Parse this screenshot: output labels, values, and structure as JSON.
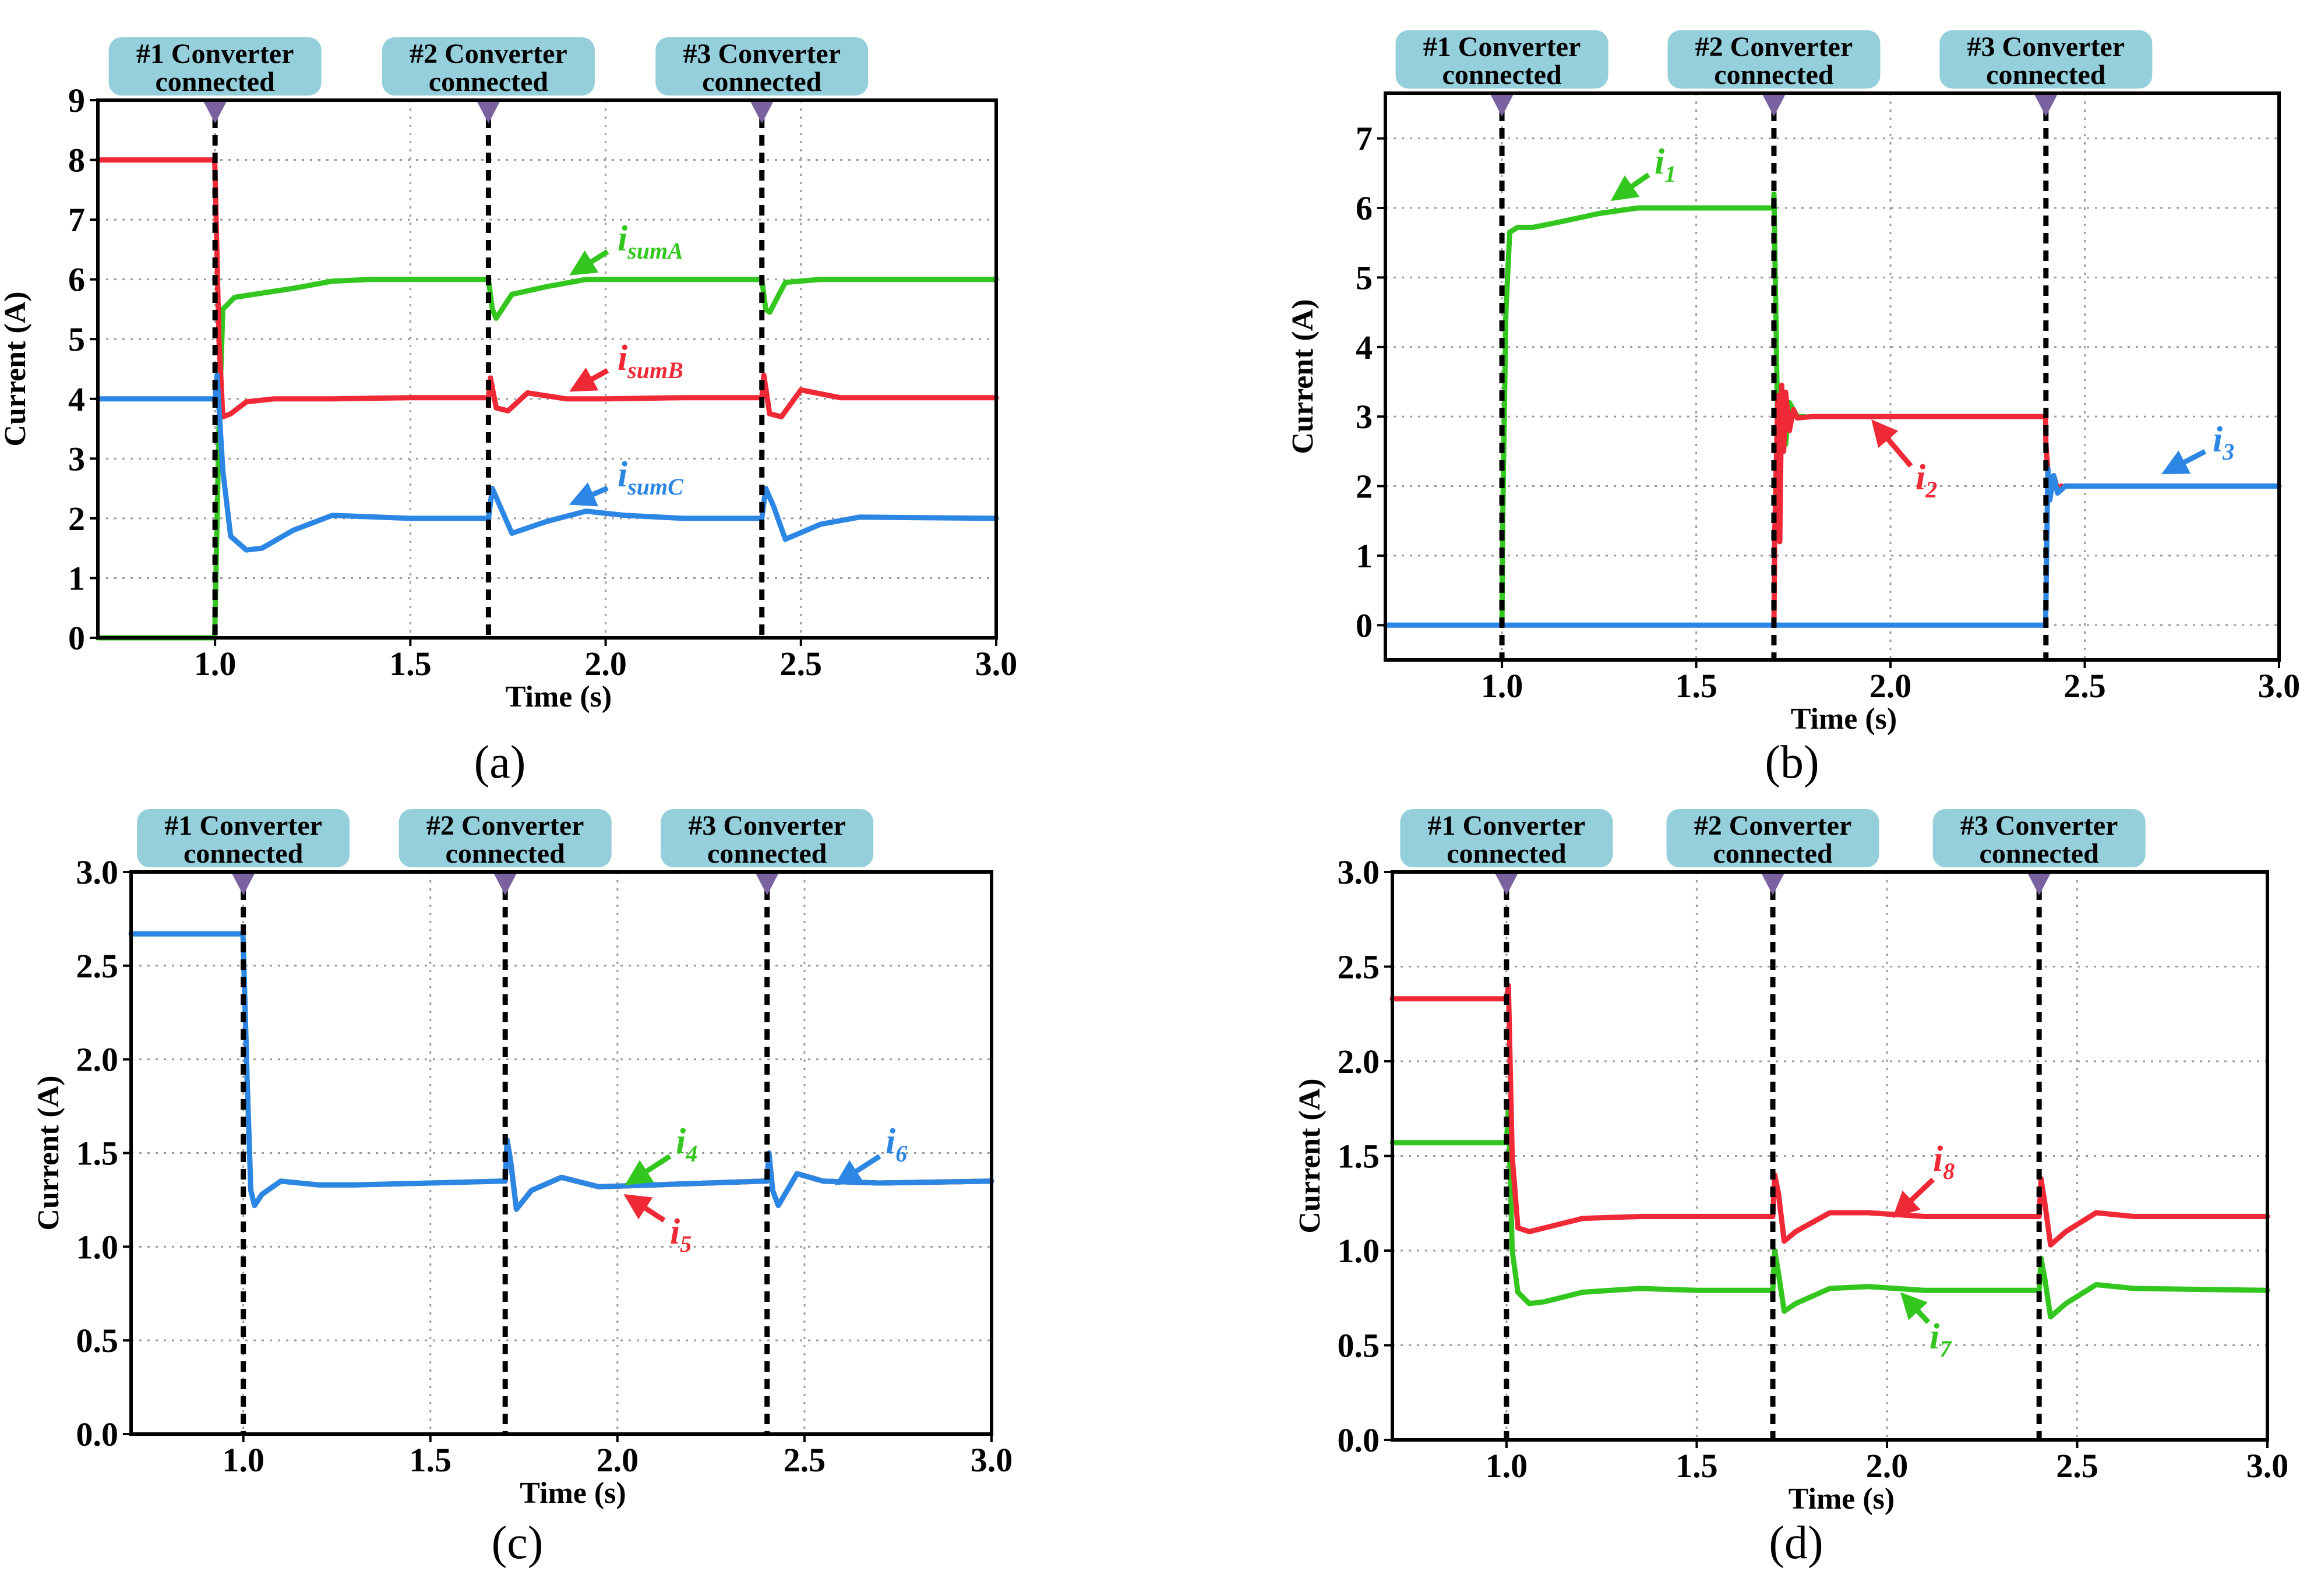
{
  "figure": {
    "colors": {
      "green": "#33c61e",
      "red": "#ef2936",
      "blue": "#2c86e4",
      "banner_fill": "#95cfdc",
      "marker": "#7a62a0"
    },
    "banner_lines": [
      "#1 Converter",
      "#2 Converter",
      "#3 Converter"
    ],
    "banner_second_line": "connected"
  },
  "chart_data": [
    {
      "type": "line",
      "panel_label": "(a)",
      "xlabel": "Time (s)",
      "ylabel": "Current (A)",
      "xlim": [
        0.7,
        3.0
      ],
      "ylim": [
        0,
        9
      ],
      "xticks": [
        "1.0",
        "1.5",
        "2.0",
        "2.5",
        "3.0"
      ],
      "xtick_values": [
        1.0,
        1.5,
        2.0,
        2.5,
        3.0
      ],
      "yticks": [
        "0",
        "1",
        "2",
        "3",
        "4",
        "5",
        "6",
        "7",
        "8",
        "9"
      ],
      "ytick_values": [
        0,
        1,
        2,
        3,
        4,
        5,
        6,
        7,
        8,
        9
      ],
      "events": [
        1.0,
        1.7,
        2.4
      ],
      "series": [
        {
          "name": "isumA",
          "label_main": "i",
          "label_sub": "sumA",
          "color": "green",
          "x": [
            0.7,
            0.999,
            1.0,
            1.01,
            1.02,
            1.05,
            1.1,
            1.2,
            1.3,
            1.4,
            1.5,
            1.69,
            1.7,
            1.71,
            1.72,
            1.76,
            1.85,
            1.95,
            2.1,
            2.39,
            2.4,
            2.41,
            2.42,
            2.46,
            2.55,
            2.7,
            3.0
          ],
          "values": [
            0,
            0,
            0.3,
            3.5,
            5.5,
            5.7,
            5.75,
            5.85,
            5.97,
            6.0,
            6.0,
            6.0,
            6.0,
            5.5,
            5.35,
            5.75,
            5.88,
            6.0,
            6.0,
            6.0,
            6.0,
            5.5,
            5.45,
            5.95,
            6.0,
            6.0,
            6.0
          ]
        },
        {
          "name": "isumB",
          "label_main": "i",
          "label_sub": "sumB",
          "color": "red",
          "x": [
            0.7,
            0.999,
            1.0,
            1.01,
            1.02,
            1.04,
            1.08,
            1.15,
            1.3,
            1.5,
            1.69,
            1.7,
            1.705,
            1.72,
            1.75,
            1.8,
            1.9,
            2.0,
            2.2,
            2.39,
            2.4,
            2.405,
            2.42,
            2.45,
            2.5,
            2.6,
            3.0
          ],
          "values": [
            8,
            8,
            7.8,
            5.0,
            3.7,
            3.75,
            3.95,
            4.0,
            4.0,
            4.02,
            4.02,
            4.02,
            4.35,
            3.85,
            3.8,
            4.1,
            4.0,
            4.0,
            4.02,
            4.02,
            4.02,
            4.4,
            3.75,
            3.7,
            4.15,
            4.02,
            4.02
          ]
        },
        {
          "name": "isumC",
          "label_main": "i",
          "label_sub": "sumC",
          "color": "blue",
          "x": [
            0.7,
            0.999,
            1.0,
            1.005,
            1.02,
            1.04,
            1.08,
            1.12,
            1.2,
            1.3,
            1.5,
            1.69,
            1.7,
            1.71,
            1.73,
            1.76,
            1.85,
            1.95,
            2.05,
            2.2,
            2.39,
            2.4,
            2.41,
            2.43,
            2.46,
            2.55,
            2.65,
            3.0
          ],
          "values": [
            4,
            4,
            4,
            4.4,
            2.8,
            1.7,
            1.47,
            1.5,
            1.8,
            2.05,
            2.0,
            2.0,
            2.0,
            2.5,
            2.2,
            1.75,
            1.95,
            2.12,
            2.05,
            2.0,
            2.0,
            2.0,
            2.5,
            2.2,
            1.65,
            1.9,
            2.02,
            2.0
          ]
        }
      ]
    },
    {
      "type": "line",
      "panel_label": "(b)",
      "xlabel": "Time (s)",
      "ylabel": "Current (A)",
      "xlim": [
        0.7,
        3.0
      ],
      "ylim": [
        -0.5,
        7.65
      ],
      "xticks": [
        "1.0",
        "1.5",
        "2.0",
        "2.5",
        "3.0"
      ],
      "xtick_values": [
        1.0,
        1.5,
        2.0,
        2.5,
        3.0
      ],
      "yticks": [
        "0",
        "1",
        "2",
        "3",
        "4",
        "5",
        "6",
        "7"
      ],
      "ytick_values": [
        0,
        1,
        2,
        3,
        4,
        5,
        6,
        7
      ],
      "events": [
        1.0,
        1.7,
        2.4
      ],
      "series": [
        {
          "name": "i1",
          "label_main": "i",
          "label_sub": "1",
          "color": "green",
          "x": [
            1.0,
            1.002,
            1.01,
            1.02,
            1.04,
            1.08,
            1.15,
            1.25,
            1.35,
            1.45,
            1.6,
            1.699,
            1.7,
            1.71,
            1.72,
            1.73,
            1.74,
            1.76,
            1.78
          ],
          "values": [
            0,
            1.5,
            4.5,
            5.65,
            5.72,
            5.72,
            5.8,
            5.92,
            6.0,
            6.0,
            6.0,
            6.0,
            6.2,
            2.7,
            3.2,
            2.6,
            3.2,
            3.0,
            3.0
          ]
        },
        {
          "name": "i2",
          "label_main": "i",
          "label_sub": "2",
          "color": "red",
          "x": [
            1.7,
            1.702,
            1.71,
            1.715,
            1.72,
            1.725,
            1.73,
            1.74,
            1.75,
            1.76,
            1.8,
            2.0,
            2.2,
            2.399,
            2.4,
            2.41,
            2.42,
            2.43,
            2.44
          ],
          "values": [
            0,
            1.3,
            3.3,
            1.2,
            3.45,
            2.5,
            3.35,
            2.8,
            3.1,
            2.98,
            3.0,
            3.0,
            3.0,
            3.0,
            2.6,
            1.85,
            2.15,
            1.95,
            2.0
          ]
        },
        {
          "name": "i3",
          "label_main": "i",
          "label_sub": "3",
          "color": "blue",
          "x": [
            0.7,
            2.399,
            2.4,
            2.405,
            2.41,
            2.42,
            2.43,
            2.45,
            2.5,
            2.7,
            3.0
          ],
          "values": [
            0,
            0,
            0.3,
            2.25,
            1.8,
            2.15,
            1.9,
            2.0,
            2.0,
            2.0,
            2.0
          ]
        }
      ]
    },
    {
      "type": "line",
      "panel_label": "(c)",
      "xlabel": "Time (s)",
      "ylabel": "Current (A)",
      "xlim": [
        0.7,
        3.0
      ],
      "ylim": [
        0,
        3.0
      ],
      "xticks": [
        "1.0",
        "1.5",
        "2.0",
        "2.5",
        "3.0"
      ],
      "xtick_values": [
        1.0,
        1.5,
        2.0,
        2.5,
        3.0
      ],
      "yticks": [
        "0.0",
        "0.5",
        "1.0",
        "1.5",
        "2.0",
        "2.5",
        "3.0"
      ],
      "ytick_values": [
        0,
        0.5,
        1.0,
        1.5,
        2.0,
        2.5,
        3.0
      ],
      "events": [
        1.0,
        1.7,
        2.4
      ],
      "series": [
        {
          "name": "i4",
          "label_main": "i",
          "label_sub": "4",
          "color": "green",
          "x": [
            0.7,
            0.999,
            1.0,
            1.01,
            1.02,
            1.03,
            1.05,
            1.1,
            1.2,
            1.3,
            1.5,
            1.69,
            1.7,
            1.705,
            1.715,
            1.73,
            1.77,
            1.85,
            1.95,
            2.1,
            2.39,
            2.4,
            2.405,
            2.415,
            2.43,
            2.48,
            2.55,
            2.7,
            3.0
          ],
          "values": [
            2.67,
            2.67,
            2.6,
            1.9,
            1.3,
            1.22,
            1.28,
            1.35,
            1.33,
            1.33,
            1.34,
            1.35,
            1.35,
            1.57,
            1.45,
            1.2,
            1.3,
            1.37,
            1.32,
            1.33,
            1.35,
            1.35,
            1.5,
            1.3,
            1.22,
            1.39,
            1.35,
            1.34,
            1.35
          ]
        },
        {
          "name": "i5",
          "label_main": "i",
          "label_sub": "5",
          "color": "red",
          "x": [
            1.7,
            1.705,
            1.715,
            1.73,
            1.77,
            1.85,
            1.95,
            2.1,
            2.39,
            2.4,
            2.405,
            2.415,
            2.43,
            2.48,
            2.55,
            2.7,
            3.0
          ],
          "values": [
            1.35,
            1.57,
            1.45,
            1.2,
            1.3,
            1.37,
            1.32,
            1.33,
            1.35,
            1.35,
            1.5,
            1.3,
            1.22,
            1.39,
            1.35,
            1.34,
            1.35
          ]
        },
        {
          "name": "i6",
          "label_main": "i",
          "label_sub": "6",
          "color": "blue",
          "x": [
            0.7,
            0.999,
            1.0,
            1.01,
            1.02,
            1.03,
            1.05,
            1.1,
            1.2,
            1.3,
            1.5,
            1.69,
            1.7,
            1.705,
            1.715,
            1.73,
            1.77,
            1.85,
            1.95,
            2.1,
            2.39,
            2.4,
            2.405,
            2.415,
            2.43,
            2.48,
            2.55,
            2.7,
            3.0
          ],
          "values": [
            2.67,
            2.67,
            2.6,
            1.9,
            1.3,
            1.22,
            1.28,
            1.35,
            1.33,
            1.33,
            1.34,
            1.35,
            1.35,
            1.57,
            1.45,
            1.2,
            1.3,
            1.37,
            1.32,
            1.33,
            1.35,
            1.35,
            1.5,
            1.3,
            1.22,
            1.39,
            1.35,
            1.34,
            1.35
          ]
        }
      ]
    },
    {
      "type": "line",
      "panel_label": "(d)",
      "xlabel": "Time (s)",
      "ylabel": "Current (A)",
      "xlim": [
        0.7,
        3.0
      ],
      "ylim": [
        0,
        3.0
      ],
      "xticks": [
        "1.0",
        "1.5",
        "2.0",
        "2.5",
        "3.0"
      ],
      "xtick_values": [
        1.0,
        1.5,
        2.0,
        2.5,
        3.0
      ],
      "yticks": [
        "0.0",
        "0.5",
        "1.0",
        "1.5",
        "2.0",
        "2.5",
        "3.0"
      ],
      "ytick_values": [
        0,
        0.5,
        1.0,
        1.5,
        2.0,
        2.5,
        3.0
      ],
      "events": [
        1.0,
        1.7,
        2.4
      ],
      "series": [
        {
          "name": "i7",
          "label_main": "i",
          "label_sub": "7",
          "color": "green",
          "x": [
            0.7,
            0.999,
            1.0,
            1.005,
            1.015,
            1.03,
            1.06,
            1.1,
            1.2,
            1.35,
            1.5,
            1.69,
            1.7,
            1.705,
            1.715,
            1.73,
            1.76,
            1.85,
            1.95,
            2.1,
            2.39,
            2.4,
            2.405,
            2.415,
            2.43,
            2.47,
            2.55,
            2.65,
            3.0
          ],
          "values": [
            1.57,
            1.57,
            1.57,
            1.75,
            1.0,
            0.78,
            0.72,
            0.73,
            0.78,
            0.8,
            0.79,
            0.79,
            0.79,
            1.0,
            0.88,
            0.68,
            0.72,
            0.8,
            0.81,
            0.79,
            0.79,
            0.79,
            0.96,
            0.85,
            0.65,
            0.72,
            0.82,
            0.8,
            0.79
          ]
        },
        {
          "name": "i8",
          "label_main": "i",
          "label_sub": "8",
          "color": "red",
          "x": [
            0.7,
            0.999,
            1.0,
            1.005,
            1.015,
            1.03,
            1.06,
            1.1,
            1.2,
            1.35,
            1.5,
            1.69,
            1.7,
            1.705,
            1.715,
            1.73,
            1.76,
            1.85,
            1.95,
            2.1,
            2.39,
            2.4,
            2.405,
            2.415,
            2.43,
            2.47,
            2.55,
            2.65,
            3.0
          ],
          "values": [
            2.33,
            2.33,
            2.33,
            2.4,
            1.5,
            1.12,
            1.1,
            1.12,
            1.17,
            1.18,
            1.18,
            1.18,
            1.18,
            1.4,
            1.3,
            1.05,
            1.1,
            1.2,
            1.2,
            1.18,
            1.18,
            1.18,
            1.38,
            1.25,
            1.03,
            1.1,
            1.2,
            1.18,
            1.18
          ]
        }
      ]
    }
  ]
}
